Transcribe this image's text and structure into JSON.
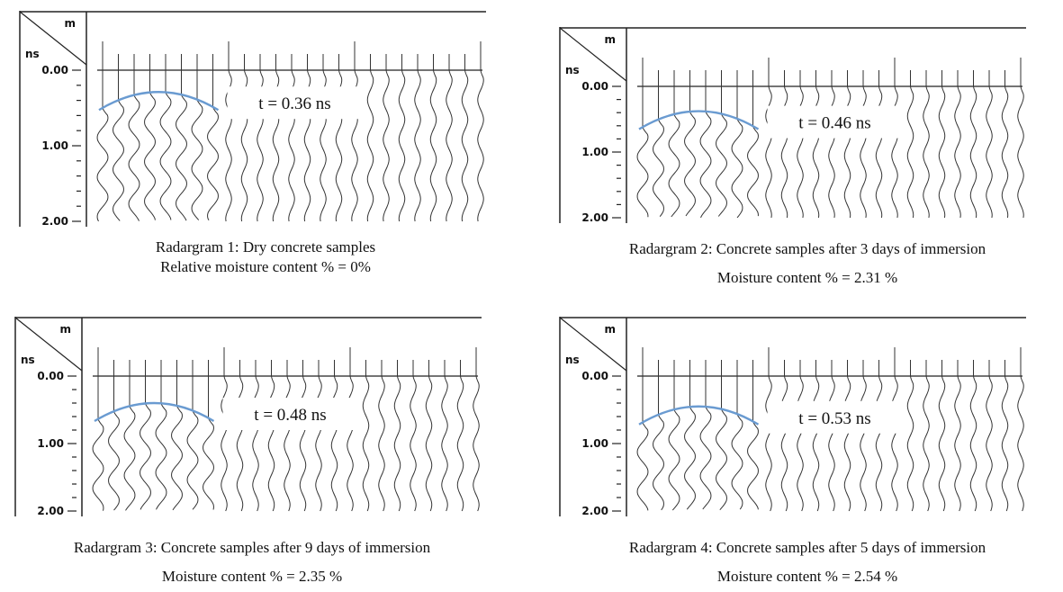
{
  "colors": {
    "arc": "#6a9bd1",
    "trace": "#333333",
    "frame": "#222222"
  },
  "chart_data": [
    {
      "type": "line",
      "x_unit": "m",
      "y_unit": "ns",
      "y_tick_labels": [
        "0.00",
        "1.00",
        "2.00"
      ],
      "ylim": [
        0,
        2
      ],
      "arrival_time_ns": 0.36,
      "arrival_label": "t = 0.36 ns",
      "caption_lines": [
        "Radargram 1: Dry concrete samples",
        "Relative moisture content % = 0%"
      ]
    },
    {
      "type": "line",
      "x_unit": "m",
      "y_unit": "ns",
      "y_tick_labels": [
        "0.00",
        "1.00",
        "2.00"
      ],
      "ylim": [
        0,
        2
      ],
      "arrival_time_ns": 0.46,
      "arrival_label": "t = 0.46 ns",
      "caption_lines": [
        "Radargram 2: Concrete samples after 3 days of immersion",
        "Moisture content % = 2.31 %"
      ]
    },
    {
      "type": "line",
      "x_unit": "m",
      "y_unit": "ns",
      "y_tick_labels": [
        "0.00",
        "1.00",
        "2.00"
      ],
      "ylim": [
        0,
        2
      ],
      "arrival_time_ns": 0.48,
      "arrival_label": "t = 0.48 ns",
      "caption_lines": [
        "Radargram 3: Concrete samples after 9 days of immersion",
        "Moisture content % = 2.35 %"
      ]
    },
    {
      "type": "line",
      "x_unit": "m",
      "y_unit": "ns",
      "y_tick_labels": [
        "0.00",
        "1.00",
        "2.00"
      ],
      "ylim": [
        0,
        2
      ],
      "arrival_time_ns": 0.53,
      "arrival_label": "t = 0.53 ns",
      "caption_lines": [
        "Radargram 4: Concrete samples after 5 days of immersion",
        "Moisture content % = 2.54 %"
      ]
    }
  ]
}
